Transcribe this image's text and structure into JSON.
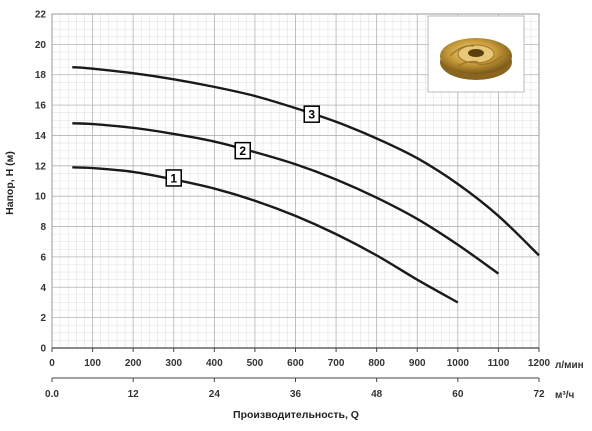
{
  "chart_data": {
    "type": "line",
    "ylabel": "Напор, H (м)",
    "xlabel": "Производительность, Q",
    "x_unit": "л/мин",
    "x2_unit": "м³/ч",
    "xlim": [
      0,
      1200
    ],
    "ylim": [
      0,
      22
    ],
    "grid": true,
    "x_ticks": [
      "0",
      "100",
      "200",
      "300",
      "400",
      "500",
      "600",
      "700",
      "800",
      "900",
      "1000",
      "1100",
      "1200"
    ],
    "x2_ticks": [
      "0.0",
      "12",
      "24",
      "36",
      "48",
      "60",
      "72"
    ],
    "y_ticks": [
      "0",
      "2",
      "4",
      "6",
      "8",
      "10",
      "12",
      "14",
      "16",
      "18",
      "20",
      "22"
    ],
    "series": [
      {
        "name": "1",
        "color": "#1a1a1a",
        "x": [
          50,
          100,
          200,
          300,
          400,
          500,
          600,
          700,
          800,
          900,
          1000
        ],
        "y": [
          11.9,
          11.85,
          11.6,
          11.1,
          10.5,
          9.7,
          8.7,
          7.5,
          6.1,
          4.5,
          3.0
        ]
      },
      {
        "name": "2",
        "color": "#1a1a1a",
        "x": [
          50,
          100,
          200,
          300,
          400,
          500,
          600,
          700,
          800,
          900,
          1000,
          1100
        ],
        "y": [
          14.8,
          14.75,
          14.5,
          14.1,
          13.6,
          12.9,
          12.1,
          11.1,
          9.9,
          8.5,
          6.8,
          4.9
        ]
      },
      {
        "name": "3",
        "color": "#1a1a1a",
        "x": [
          50,
          100,
          200,
          300,
          400,
          500,
          600,
          700,
          800,
          900,
          1000,
          1100,
          1200
        ],
        "y": [
          18.5,
          18.4,
          18.1,
          17.7,
          17.2,
          16.6,
          15.8,
          14.9,
          13.8,
          12.5,
          10.8,
          8.7,
          6.1
        ]
      }
    ],
    "curve_labels": [
      {
        "text": "1",
        "x": 300,
        "y": 11.2
      },
      {
        "text": "2",
        "x": 470,
        "y": 13.0
      },
      {
        "text": "3",
        "x": 640,
        "y": 15.4
      }
    ]
  },
  "impeller_image": {
    "description_icon": "impeller-photo-icon",
    "color": "#c79a3a"
  }
}
